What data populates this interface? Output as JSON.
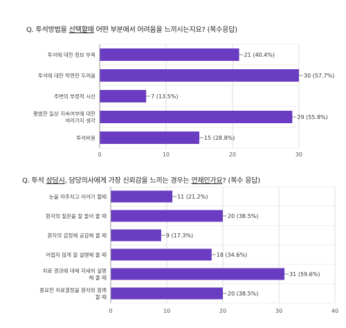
{
  "chart_data": [
    {
      "type": "bar",
      "orientation": "horizontal",
      "title": {
        "prefix": "Q. 투석방법을 ",
        "underlined": "선택할때",
        "suffix": " 어떤 부분에서 어려움을 느끼시는지요? (복수응답)"
      },
      "categories": [
        [
          "투석에 대한 정보 부족"
        ],
        [
          "투석에 대한 막연한 두려움"
        ],
        [
          "주변의 부정적 시선"
        ],
        [
          "평범한 일상 지속여부에 대한",
          "여러가지 생각"
        ],
        [
          "투석비용"
        ]
      ],
      "values": [
        21,
        30,
        7,
        29,
        15
      ],
      "data_labels": [
        "21 (40.4%)",
        "30 (57.7%)",
        "7 (13.5%)",
        "29 (55.8%)",
        "15 (28.8%)"
      ],
      "xlim": [
        0,
        30
      ],
      "ticks": [
        "0",
        "10",
        "20",
        "30"
      ],
      "grid": true,
      "bar_color": "#6a3cc1"
    },
    {
      "type": "bar",
      "orientation": "horizontal",
      "title": {
        "prefix": "Q. 투석 ",
        "underlined": "상담시",
        "middle": ", 담당의사에게 가장 신뢰감을 느끼는 경우는 ",
        "underlined2": "언제인가요",
        "suffix": "? (복수 응답)"
      },
      "categories": [
        [
          "눈을 마주치고 이야기 할때"
        ],
        [
          "환자의 질문을 잘 들어 줄 때"
        ],
        [
          "환자의 감정에 공감해 줄 때"
        ],
        [
          "어렵지 않게 잘 설명해 줄 때"
        ],
        [
          "치료 경과에 대해 자세히 설명",
          "해 줄 때"
        ],
        [
          "중요한 치료결정을 환자와 함께",
          "할 때"
        ]
      ],
      "values": [
        11,
        20,
        9,
        18,
        31,
        20
      ],
      "data_labels": [
        "11 (21.2%)",
        "20 (38.5%)",
        "9 (17.3%)",
        "18 (34.6%)",
        "31 (59.6%)",
        "20 (38.5%)"
      ],
      "xlim": [
        0,
        40
      ],
      "ticks": [
        "0",
        "10",
        "20",
        "30",
        "40"
      ],
      "grid": true,
      "bar_color": "#6a3cc1"
    }
  ]
}
